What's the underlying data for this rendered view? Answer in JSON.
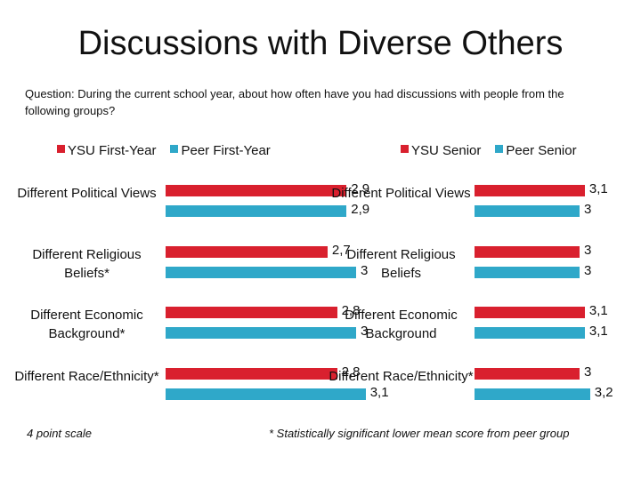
{
  "title": "Discussions with Diverse Others",
  "question": "Question: During the current school year, about how often have you had discussions with people from the following groups?",
  "colors": {
    "ysu": "#d9202e",
    "peer": "#2fa8c9"
  },
  "footnote_left": "4 point scale",
  "footnote_right": "* Statistically significant lower mean score from peer group",
  "chart_data": [
    {
      "type": "bar",
      "orientation": "horizontal",
      "title": "First-Year",
      "categories": [
        "Different Political Views",
        "Different Religious Beliefs*",
        "Different Economic Background*",
        "Different Race/Ethnicity*"
      ],
      "series": [
        {
          "name": "YSU First-Year",
          "values": [
            2.9,
            2.7,
            2.8,
            2.8
          ],
          "labels": [
            "2,9",
            "2,7",
            "2,8",
            "2,8"
          ]
        },
        {
          "name": "Peer First-Year",
          "values": [
            2.9,
            3.0,
            3.0,
            3.1
          ],
          "labels": [
            "2,9",
            "3",
            "3",
            "3,1"
          ]
        }
      ],
      "legend": [
        "YSU First-Year",
        "Peer First-Year"
      ],
      "xlim": [
        1,
        4
      ]
    },
    {
      "type": "bar",
      "orientation": "horizontal",
      "title": "Senior",
      "categories": [
        "Different Political Views",
        "Different Religious Beliefs",
        "Different Economic Background",
        "Different Race/Ethnicity*"
      ],
      "series": [
        {
          "name": "YSU Senior",
          "values": [
            3.1,
            3.0,
            3.1,
            3.0
          ],
          "labels": [
            "3,1",
            "3",
            "3,1",
            "3"
          ]
        },
        {
          "name": "Peer Senior",
          "values": [
            3.0,
            3.0,
            3.1,
            3.2
          ],
          "labels": [
            "3",
            "3",
            "3,1",
            "3,2"
          ]
        }
      ],
      "legend": [
        "YSU Senior",
        "Peer Senior"
      ],
      "xlim": [
        1,
        4
      ]
    }
  ]
}
